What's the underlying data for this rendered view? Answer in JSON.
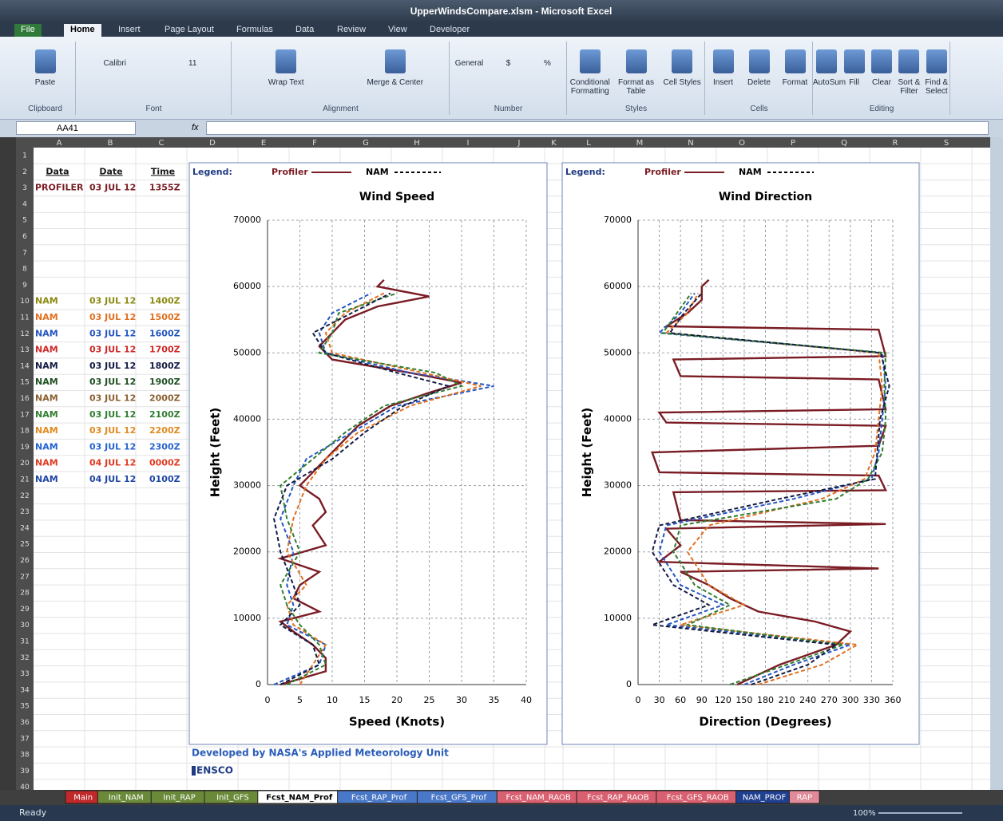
{
  "window": {
    "title": "UpperWindsCompare.xlsm - Microsoft Excel"
  },
  "ribbon": {
    "tabs": [
      "File",
      "Home",
      "Insert",
      "Page Layout",
      "Formulas",
      "Data",
      "Review",
      "View",
      "Developer"
    ],
    "groups": [
      {
        "label": "Clipboard",
        "buttons": [
          "Paste"
        ]
      },
      {
        "label": "Font",
        "buttons": [
          "Calibri",
          "11"
        ]
      },
      {
        "label": "Alignment",
        "buttons": [
          "Wrap Text",
          "Merge & Center"
        ]
      },
      {
        "label": "Number",
        "buttons": [
          "General",
          "$",
          "%"
        ]
      },
      {
        "label": "Styles",
        "buttons": [
          "Conditional Formatting",
          "Format as Table",
          "Cell Styles"
        ]
      },
      {
        "label": "Cells",
        "buttons": [
          "Insert",
          "Delete",
          "Format"
        ]
      },
      {
        "label": "Editing",
        "buttons": [
          "AutoSum",
          "Fill",
          "Clear",
          "Sort & Filter",
          "Find & Select"
        ]
      }
    ]
  },
  "formula_bar": {
    "name_box": "AA41",
    "function_label": "fx"
  },
  "sheet": {
    "columns": [
      "A",
      "B",
      "C",
      "D",
      "E",
      "F",
      "G",
      "H",
      "I",
      "J",
      "K",
      "L",
      "M",
      "N",
      "O",
      "P",
      "Q",
      "R",
      "S"
    ],
    "rows": [
      1,
      2,
      3,
      4,
      5,
      6,
      7,
      8,
      9,
      10,
      11,
      12,
      13,
      14,
      15,
      16,
      17,
      18,
      19,
      20,
      21,
      22,
      23,
      24,
      25,
      26,
      27,
      28,
      29,
      30,
      31,
      32,
      33,
      34,
      35,
      36,
      37,
      38,
      39,
      40
    ]
  },
  "table": {
    "header": [
      "Data",
      "Date",
      "Time"
    ],
    "rows": [
      {
        "cells": [
          "PROFILER",
          "03 JUL 12",
          "1355Z"
        ],
        "color": "#7a1c24"
      },
      {
        "cells": [
          "NAM",
          "03 JUL 12",
          "1400Z"
        ],
        "color": "#8a8a10"
      },
      {
        "cells": [
          "NAM",
          "03 JUL 12",
          "1500Z"
        ],
        "color": "#e07020"
      },
      {
        "cells": [
          "NAM",
          "03 JUL 12",
          "1600Z"
        ],
        "color": "#2455c0"
      },
      {
        "cells": [
          "NAM",
          "03 JUL 12",
          "1700Z"
        ],
        "color": "#d02828"
      },
      {
        "cells": [
          "NAM",
          "03 JUL 12",
          "1800Z"
        ],
        "color": "#121a44"
      },
      {
        "cells": [
          "NAM",
          "03 JUL 12",
          "1900Z"
        ],
        "color": "#1f4f22"
      },
      {
        "cells": [
          "NAM",
          "03 JUL 12",
          "2000Z"
        ],
        "color": "#8a6030"
      },
      {
        "cells": [
          "NAM",
          "03 JUL 12",
          "2100Z"
        ],
        "color": "#2f7d2f"
      },
      {
        "cells": [
          "NAM",
          "03 JUL 12",
          "2200Z"
        ],
        "color": "#e08a20"
      },
      {
        "cells": [
          "NAM",
          "03 JUL 12",
          "2300Z"
        ],
        "color": "#2563d0"
      },
      {
        "cells": [
          "NAM",
          "04 JUL 12",
          "0000Z"
        ],
        "color": "#e03a20"
      },
      {
        "cells": [
          "NAM",
          "04 JUL 12",
          "0100Z"
        ],
        "color": "#1f45a5"
      }
    ]
  },
  "chart_data": [
    {
      "type": "line",
      "legend_label": "Legend:",
      "title": "Wind Speed",
      "x_label": "Speed (Knots)",
      "y_label": "Height (Feet)",
      "xlim": [
        0,
        40
      ],
      "xticks": [
        0,
        5,
        10,
        15,
        20,
        25,
        30,
        35,
        40
      ],
      "ylim": [
        0,
        70000
      ],
      "yticks": [
        0,
        10000,
        20000,
        30000,
        40000,
        50000,
        60000,
        70000
      ],
      "grid": true,
      "series": [
        {
          "name": "Profiler",
          "color": "#7a1c24",
          "style": "solid",
          "runs": [
            {
              "x": [
                2,
                9,
                9,
                7,
                4,
                2,
                8,
                4,
                5,
                8,
                2,
                9,
                7,
                9,
                8,
                5,
                8,
                11,
                14,
                19,
                25,
                30,
                22,
                10,
                8,
                10,
                12,
                17,
                25,
                17,
                18
              ],
              "values": [
                0,
                2000,
                4000,
                6000,
                8000,
                9500,
                11000,
                13000,
                15000,
                17000,
                19000,
                21000,
                24000,
                26000,
                28000,
                30000,
                33000,
                36000,
                39000,
                42000,
                44000,
                45500,
                47000,
                49000,
                51000,
                53000,
                55000,
                57000,
                58500,
                60000,
                61000
              ]
            }
          ]
        },
        {
          "name": "NAM",
          "color": "#000000",
          "style": "dashed",
          "runs": [
            {
              "color": "#2455c0",
              "x": [
                1,
                8,
                9,
                3,
                4,
                3,
                4,
                2,
                4,
                6,
                13,
                20,
                35,
                22,
                9,
                8,
                10,
                16
              ],
              "values": [
                0,
                3000,
                6000,
                9000,
                12000,
                15000,
                20000,
                25000,
                30000,
                34000,
                38000,
                42000,
                45000,
                47000,
                50000,
                53000,
                56000,
                59000
              ]
            },
            {
              "color": "#e07020",
              "x": [
                5,
                7,
                9,
                4,
                3,
                6,
                3,
                4,
                6,
                9,
                14,
                22,
                33,
                24,
                10,
                9,
                12,
                18
              ],
              "values": [
                0,
                3000,
                6000,
                9000,
                12000,
                15000,
                20000,
                25000,
                30000,
                34000,
                38000,
                42000,
                45000,
                47000,
                50000,
                53000,
                56000,
                59000
              ]
            },
            {
              "color": "#2f7d2f",
              "x": [
                3,
                9,
                8,
                5,
                3,
                2,
                5,
                3,
                2,
                7,
                12,
                18,
                30,
                26,
                8,
                10,
                11,
                20
              ],
              "values": [
                0,
                3000,
                6000,
                9000,
                12000,
                15000,
                20000,
                25000,
                30000,
                34000,
                38000,
                42000,
                45000,
                47000,
                50000,
                53000,
                56000,
                59000
              ]
            },
            {
              "color": "#121a44",
              "x": [
                2,
                8,
                7,
                2,
                5,
                4,
                2,
                1,
                3,
                10,
                15,
                21,
                28,
                20,
                9,
                7,
                13,
                19
              ],
              "values": [
                0,
                3000,
                6000,
                9000,
                12000,
                15000,
                20000,
                25000,
                30000,
                34000,
                38000,
                42000,
                45000,
                47000,
                50000,
                53000,
                56000,
                59000
              ]
            }
          ]
        }
      ]
    },
    {
      "type": "line",
      "legend_label": "Legend:",
      "title": "Wind Direction",
      "x_label": "Direction (Degrees)",
      "y_label": "Height (Feet)",
      "xlim": [
        0,
        360
      ],
      "xticks": [
        0,
        30,
        60,
        90,
        120,
        150,
        180,
        210,
        240,
        270,
        300,
        330,
        360
      ],
      "ylim": [
        0,
        70000
      ],
      "yticks": [
        0,
        10000,
        20000,
        30000,
        40000,
        50000,
        60000,
        70000
      ],
      "grid": true,
      "series": [
        {
          "name": "Profiler",
          "color": "#7a1c24",
          "style": "solid",
          "runs": [
            {
              "x": [
                140,
                200,
                280,
                300,
                250,
                170,
                130,
                100,
                60,
                340,
                30,
                60,
                40,
                350,
                60,
                50,
                350,
                340,
                30,
                20,
                340,
                350,
                40,
                30,
                350,
                340,
                60,
                50,
                350,
                340,
                40,
                70,
                90,
                90,
                100
              ],
              "values": [
                0,
                3000,
                6000,
                8000,
                9500,
                11000,
                13000,
                15000,
                17000,
                17500,
                18500,
                21000,
                23500,
                24200,
                24800,
                29000,
                29300,
                31500,
                32000,
                35000,
                36000,
                39000,
                39500,
                41000,
                41500,
                46000,
                46500,
                49000,
                49500,
                53500,
                54000,
                56000,
                58000,
                60000,
                61000
              ]
            }
          ]
        },
        {
          "name": "NAM",
          "color": "#000000",
          "style": "dashed",
          "runs": [
            {
              "color": "#2455c0",
              "x": [
                150,
                220,
                300,
                40,
                120,
                60,
                30,
                40,
                220,
                330,
                340,
                345,
                350,
                345,
                30,
                60,
                80
              ],
              "values": [
                0,
                3000,
                6000,
                9000,
                12000,
                15000,
                20000,
                24000,
                28000,
                31000,
                35000,
                40000,
                45000,
                50000,
                53000,
                56000,
                59000
              ]
            },
            {
              "color": "#e07020",
              "x": [
                170,
                260,
                310,
                60,
                150,
                100,
                70,
                100,
                260,
                320,
                335,
                340,
                345,
                340,
                40,
                70,
                85
              ],
              "values": [
                0,
                3000,
                6000,
                9000,
                12000,
                15000,
                20000,
                24000,
                28000,
                31000,
                35000,
                40000,
                45000,
                50000,
                53000,
                56000,
                59000
              ]
            },
            {
              "color": "#2f7d2f",
              "x": [
                130,
                210,
                290,
                70,
                130,
                80,
                50,
                60,
                280,
                325,
                345,
                350,
                348,
                350,
                35,
                55,
                75
              ],
              "values": [
                0,
                3000,
                6000,
                9000,
                12000,
                15000,
                20000,
                24000,
                28000,
                31000,
                35000,
                40000,
                45000,
                50000,
                53000,
                56000,
                59000
              ]
            },
            {
              "color": "#121a44",
              "x": [
                160,
                240,
                280,
                20,
                100,
                50,
                20,
                30,
                200,
                335,
                338,
                342,
                355,
                343,
                45,
                65,
                90
              ],
              "values": [
                0,
                3000,
                6000,
                9000,
                12000,
                15000,
                20000,
                24000,
                28000,
                31000,
                35000,
                40000,
                45000,
                50000,
                53000,
                56000,
                59000
              ]
            }
          ]
        }
      ]
    }
  ],
  "footer": {
    "credit": "Developed by NASA's Applied Meteorology Unit",
    "logo": "ENSCO"
  },
  "sheet_tabs": [
    {
      "name": "Main",
      "color": "#c0282a"
    },
    {
      "name": "Init_NAM",
      "color": "#6a8a3a"
    },
    {
      "name": "Init_RAP",
      "color": "#6a8a3a"
    },
    {
      "name": "Init_GFS",
      "color": "#6a8a3a"
    },
    {
      "name": "Fcst_NAM_Prof",
      "color": "#ffffff"
    },
    {
      "name": "Fcst_RAP_Prof",
      "color": "#4a78c8"
    },
    {
      "name": "Fcst_GFS_Prof",
      "color": "#4a78c8"
    },
    {
      "name": "Fcst_NAM_RAOB",
      "color": "#d86070"
    },
    {
      "name": "Fcst_RAP_RAOB",
      "color": "#d86070"
    },
    {
      "name": "Fcst_GFS_RAOB",
      "color": "#d86070"
    },
    {
      "name": "NAM_PROF",
      "color": "#1f3f8f"
    },
    {
      "name": "RAP",
      "color": "#e08a9a"
    }
  ],
  "status_bar": {
    "status": "Ready",
    "zoom": "100%"
  }
}
